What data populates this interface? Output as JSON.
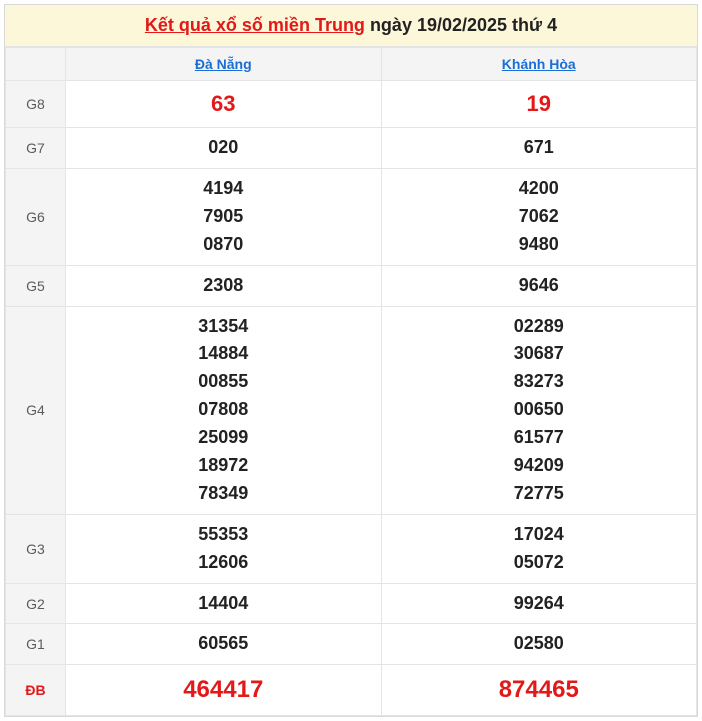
{
  "title": {
    "link_text": "Kết quả xổ số miền Trung",
    "date_text": " ngày 19/02/2025 thứ 4"
  },
  "provinces": [
    "Đà Nẵng",
    "Khánh Hòa"
  ],
  "rows": [
    {
      "label": "G8",
      "cls": "g8",
      "cells": [
        [
          "63"
        ],
        [
          "19"
        ]
      ]
    },
    {
      "label": "G7",
      "cls": "",
      "cells": [
        [
          "020"
        ],
        [
          "671"
        ]
      ]
    },
    {
      "label": "G6",
      "cls": "",
      "cells": [
        [
          "4194",
          "7905",
          "0870"
        ],
        [
          "4200",
          "7062",
          "9480"
        ]
      ]
    },
    {
      "label": "G5",
      "cls": "",
      "cells": [
        [
          "2308"
        ],
        [
          "9646"
        ]
      ]
    },
    {
      "label": "G4",
      "cls": "",
      "cells": [
        [
          "31354",
          "14884",
          "00855",
          "07808",
          "25099",
          "18972",
          "78349"
        ],
        [
          "02289",
          "30687",
          "83273",
          "00650",
          "61577",
          "94209",
          "72775"
        ]
      ]
    },
    {
      "label": "G3",
      "cls": "",
      "cells": [
        [
          "55353",
          "12606"
        ],
        [
          "17024",
          "05072"
        ]
      ]
    },
    {
      "label": "G2",
      "cls": "",
      "cells": [
        [
          "14404"
        ],
        [
          "99264"
        ]
      ]
    },
    {
      "label": "G1",
      "cls": "",
      "cells": [
        [
          "60565"
        ],
        [
          "02580"
        ]
      ]
    },
    {
      "label": "ĐB",
      "cls": "db",
      "cells": [
        [
          "464417"
        ],
        [
          "874465"
        ]
      ]
    }
  ],
  "colors": {
    "title_bg": "#fdf7d9",
    "header_bg": "#f4f4f4",
    "border": "#e4e4e4",
    "red": "#e31818",
    "link_blue": "#1a6fd6",
    "text": "#222222",
    "label_text": "#5b5b5b"
  }
}
